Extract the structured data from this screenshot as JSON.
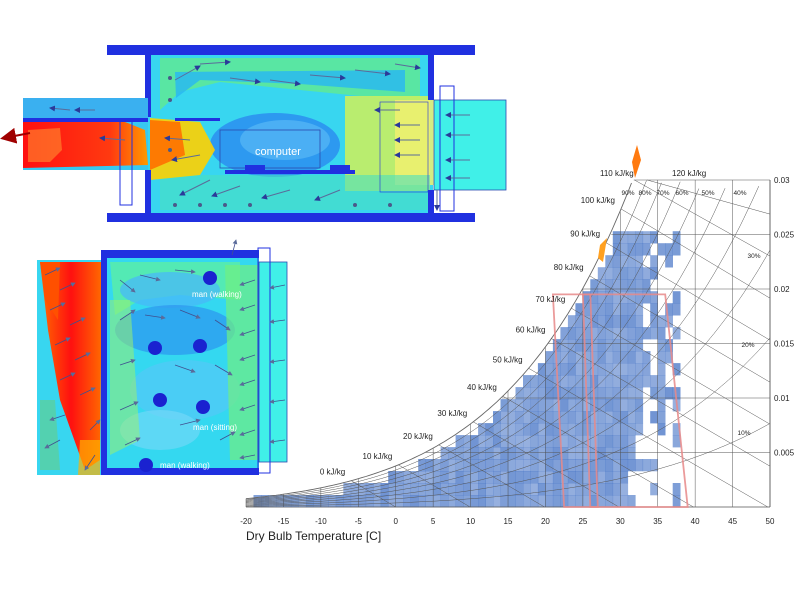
{
  "cfd_top": {
    "label_computer": "computer"
  },
  "cfd_bottom": {
    "label_man_walking_top": "man (walking)",
    "label_man_sitting": "man (sitting)",
    "label_man_walking_bottom": "man (walking)"
  },
  "chart_data": {
    "type": "heatmap",
    "xlabel": "Dry Bulb Temperature [C]",
    "ylabel": "",
    "x_ticks": [
      -20,
      -15,
      -10,
      -5,
      0,
      5,
      10,
      15,
      20,
      25,
      30,
      35,
      40,
      45,
      50
    ],
    "y_ticks": [
      0.005,
      0.01,
      0.015,
      0.02,
      0.025,
      0.03
    ],
    "y_tick_labels": [
      "0.005",
      "0.01",
      "0.015",
      "0.02",
      "0.025",
      "0.03"
    ],
    "xlim": [
      -20,
      50
    ],
    "ylim": [
      0,
      0.03
    ],
    "enthalpy_labels": [
      "0 kJ/kg",
      "10 kJ/kg",
      "20 kJ/kg",
      "30 kJ/kg",
      "40 kJ/kg",
      "50 kJ/kg",
      "60 kJ/kg",
      "70 kJ/kg",
      "80 kJ/kg",
      "90 kJ/kg",
      "100 kJ/kg",
      "110 kJ/kg",
      "120 kJ/kg"
    ],
    "enthalpy_values": [
      0,
      10,
      20,
      30,
      40,
      50,
      60,
      70,
      80,
      90,
      100,
      110,
      120
    ],
    "rh_labels_top": [
      "90%",
      "80%",
      "70%",
      "60%",
      "50%",
      "40%"
    ],
    "rh_labels_side": [
      "30%",
      "20%",
      "10%"
    ],
    "rh_levels": [
      1.0,
      0.9,
      0.8,
      0.7,
      0.6,
      0.5,
      0.4,
      0.3,
      0.2,
      0.1
    ],
    "comfort_zones": [
      {
        "t_low": [
          21,
          22.5
        ],
        "t_high": [
          26,
          27
        ],
        "w_range": [
          0,
          0.0195
        ],
        "color": "#e88a8a"
      },
      {
        "t_low": [
          25,
          26
        ],
        "t_high": [
          36,
          39
        ],
        "w_range": [
          0,
          0.0195
        ],
        "color": "#e88a8a"
      }
    ],
    "colors": {
      "cell": "#3f6fc4",
      "comfort": "#e88a8a",
      "grid": "#333333"
    }
  }
}
